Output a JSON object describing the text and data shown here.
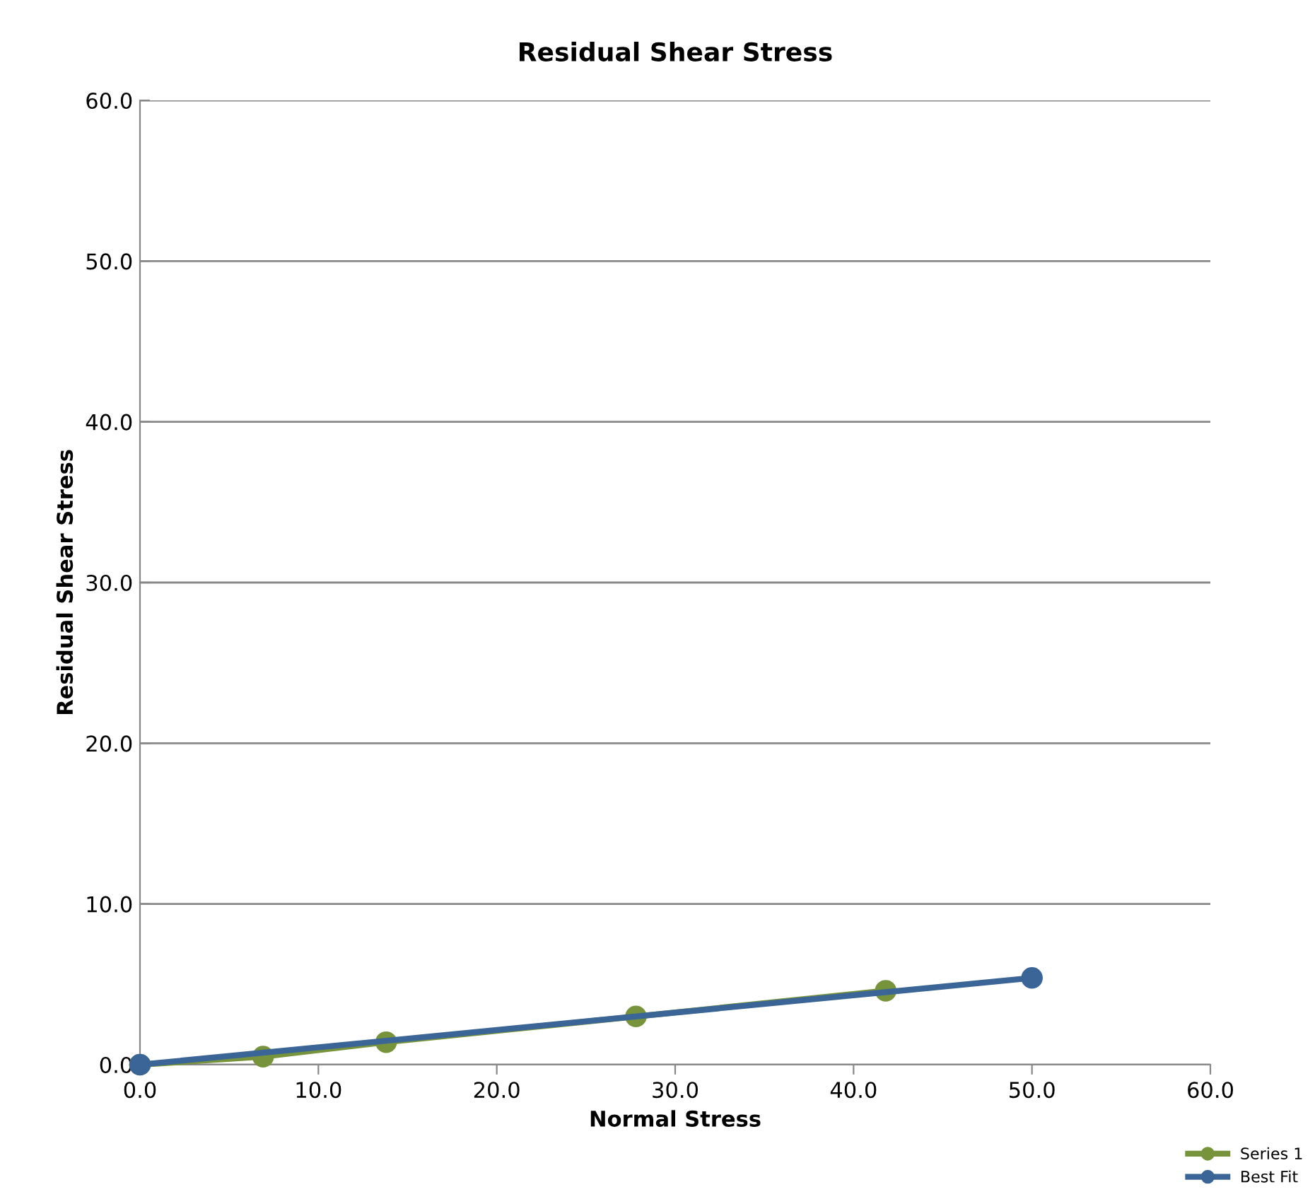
{
  "chart_data": {
    "type": "line",
    "title": "Residual Shear Stress",
    "xlabel": "Normal Stress",
    "ylabel": "Residual Shear Stress",
    "series": [
      {
        "name": "Series 1",
        "color": "#77933c",
        "x": [
          0.0,
          6.9,
          13.8,
          27.8,
          41.8
        ],
        "values": [
          0.0,
          0.5,
          1.4,
          3.0,
          4.6
        ]
      },
      {
        "name": "Best Fit",
        "color": "#3a6596",
        "x": [
          0.0,
          50.0
        ],
        "values": [
          0.0,
          5.4
        ]
      }
    ],
    "xlim": [
      0,
      60
    ],
    "ylim": [
      0,
      60
    ],
    "xticks": [
      {
        "value": 0,
        "label": "0.0"
      },
      {
        "value": 10,
        "label": "10.0"
      },
      {
        "value": 20,
        "label": "20.0"
      },
      {
        "value": 30,
        "label": "30.0"
      },
      {
        "value": 40,
        "label": "40.0"
      },
      {
        "value": 50,
        "label": "50.0"
      },
      {
        "value": 60,
        "label": "60.0"
      }
    ],
    "yticks": [
      {
        "value": 0,
        "label": "0.0"
      },
      {
        "value": 10,
        "label": "10.0"
      },
      {
        "value": 20,
        "label": "20.0"
      },
      {
        "value": 30,
        "label": "30.0"
      },
      {
        "value": 40,
        "label": "40.0"
      },
      {
        "value": 50,
        "label": "50.0"
      },
      {
        "value": 60,
        "label": "60.0"
      }
    ],
    "grid": "y",
    "legend": "bottom right",
    "marker": "circle",
    "line_style": "solid"
  }
}
